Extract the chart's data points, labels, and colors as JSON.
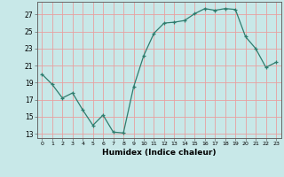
{
  "x": [
    0,
    1,
    2,
    3,
    4,
    5,
    6,
    7,
    8,
    9,
    10,
    11,
    12,
    13,
    14,
    15,
    16,
    17,
    18,
    19,
    20,
    21,
    22,
    23
  ],
  "y": [
    20.0,
    18.8,
    17.2,
    17.8,
    15.8,
    14.0,
    15.2,
    13.2,
    13.1,
    18.5,
    22.2,
    24.8,
    26.0,
    26.1,
    26.3,
    27.1,
    27.7,
    27.5,
    27.7,
    27.6,
    24.4,
    23.0,
    20.8,
    21.4
  ],
  "line_color": "#2e7d6e",
  "marker": "+",
  "xlabel": "Humidex (Indice chaleur)",
  "bg_color": "#c8e8e8",
  "grid_color": "#e8a0a0",
  "ylim": [
    12.5,
    28.5
  ],
  "xlim": [
    -0.5,
    23.5
  ],
  "yticks": [
    13,
    15,
    17,
    19,
    21,
    23,
    25,
    27
  ],
  "xticks": [
    0,
    1,
    2,
    3,
    4,
    5,
    6,
    7,
    8,
    9,
    10,
    11,
    12,
    13,
    14,
    15,
    16,
    17,
    18,
    19,
    20,
    21,
    22,
    23
  ]
}
